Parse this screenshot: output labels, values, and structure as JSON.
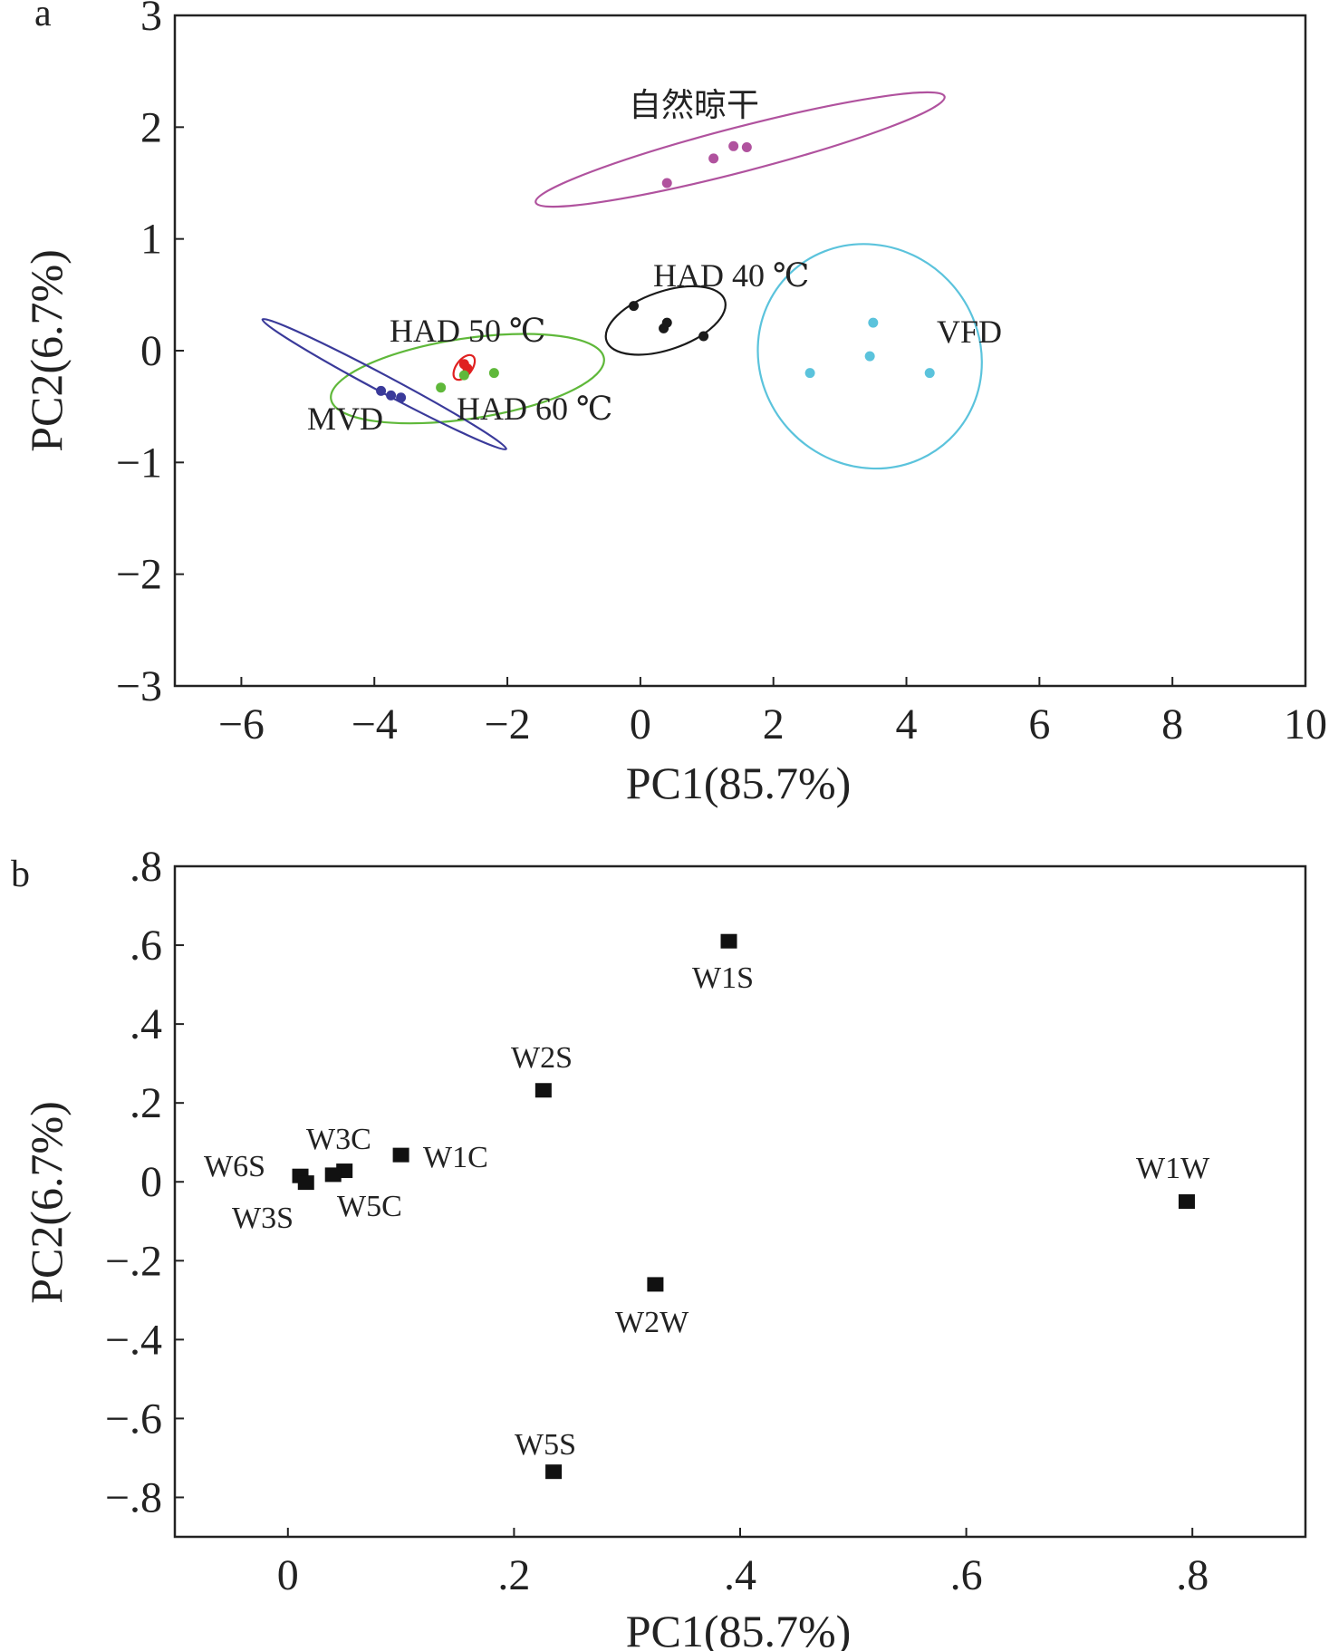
{
  "chart_data": [
    {
      "type": "scatter",
      "panel_label": "a",
      "title": "",
      "xlabel": "PC1(85.7%)",
      "ylabel": "PC2(6.7%)",
      "xlim": [
        -7,
        10
      ],
      "ylim": [
        -3,
        3
      ],
      "xticks": [
        -6,
        -4,
        -2,
        0,
        2,
        4,
        6,
        8,
        10
      ],
      "yticks": [
        -3,
        -2,
        -1,
        0,
        1,
        2,
        3
      ],
      "grid": false,
      "legend": "none",
      "groups": [
        {
          "name": "自然晾干",
          "color": "#b0529e",
          "points": [
            [
              0.4,
              1.5
            ],
            [
              1.1,
              1.72
            ],
            [
              1.4,
              1.83
            ],
            [
              1.6,
              1.82
            ]
          ],
          "ellipse": {
            "cx": 1.5,
            "cy": 1.8,
            "rx": 6.35,
            "ry": 0.2,
            "angle_deg": 14.5
          }
        },
        {
          "name": "HAD 40 ℃",
          "color": "#1a1a1a",
          "points": [
            [
              -0.1,
              0.4
            ],
            [
              0.35,
              0.2
            ],
            [
              0.4,
              0.25
            ],
            [
              0.95,
              0.13
            ]
          ],
          "ellipse": {
            "cx": 0.38,
            "cy": 0.27,
            "rx": 1.88,
            "ry": 0.26,
            "angle_deg": 19
          }
        },
        {
          "name": "VFD",
          "color": "#5bc3dc",
          "points": [
            [
              3.5,
              0.25
            ],
            [
              3.45,
              -0.05
            ],
            [
              2.55,
              -0.2
            ],
            [
              4.35,
              -0.2
            ]
          ],
          "ellipse": {
            "cx": 3.45,
            "cy": -0.05,
            "rx": 3.28,
            "ry": 1.03,
            "angle_deg": 44
          }
        },
        {
          "name": "HAD 50 ℃",
          "color": "#e02020",
          "points": [
            [
              -2.65,
              -0.12
            ],
            [
              -2.6,
              -0.16
            ]
          ],
          "ellipse": {
            "cx": -2.65,
            "cy": -0.15,
            "rx": 0.43,
            "ry": 0.07,
            "angle_deg": 53
          }
        },
        {
          "name": "HAD 60 ℃",
          "color": "#5fb83a",
          "points": [
            [
              -3.0,
              -0.33
            ],
            [
              -2.65,
              -0.22
            ],
            [
              -2.2,
              -0.2
            ]
          ],
          "ellipse": {
            "cx": -2.6,
            "cy": -0.25,
            "rx": 4.15,
            "ry": 0.36,
            "angle_deg": 8.5
          }
        },
        {
          "name": "MVD",
          "color": "#3a3a9a",
          "points": [
            [
              -3.9,
              -0.36
            ],
            [
              -3.75,
              -0.4
            ],
            [
              -3.6,
              -0.42
            ]
          ],
          "ellipse": {
            "cx": -3.85,
            "cy": -0.3,
            "rx": 4.15,
            "ry": 0.075,
            "angle_deg": -28
          }
        }
      ]
    },
    {
      "type": "scatter",
      "panel_label": "b",
      "title": "",
      "xlabel": "PC1(85.7%)",
      "ylabel": "PC2(6.7%)",
      "xlim": [
        -0.1,
        0.9
      ],
      "ylim": [
        -0.9,
        0.8
      ],
      "xticks": [
        0,
        0.2,
        0.4,
        0.6,
        0.8
      ],
      "yticks": [
        -0.8,
        -0.6,
        -0.4,
        -0.2,
        0,
        0.2,
        0.4,
        0.6,
        0.8
      ],
      "grid": false,
      "legend": "none",
      "points": [
        {
          "label": "W1S",
          "x": 0.39,
          "y": 0.61,
          "label_pos": "below"
        },
        {
          "label": "W2S",
          "x": 0.226,
          "y": 0.232,
          "label_pos": "above"
        },
        {
          "label": "W3C",
          "x": 0.05,
          "y": 0.028,
          "label_pos": "above"
        },
        {
          "label": "W1C",
          "x": 0.1,
          "y": 0.068,
          "label_pos": "right"
        },
        {
          "label": "W6S",
          "x": 0.011,
          "y": 0.015,
          "label_pos": "left"
        },
        {
          "label": "W3S",
          "x": 0.016,
          "y": -0.002,
          "label_pos": "below-left"
        },
        {
          "label": "W5C",
          "x": 0.04,
          "y": 0.018,
          "label_pos": "below-right"
        },
        {
          "label": "W1W",
          "x": 0.795,
          "y": -0.05,
          "label_pos": "above"
        },
        {
          "label": "W2W",
          "x": 0.325,
          "y": -0.26,
          "label_pos": "below"
        },
        {
          "label": "W5S",
          "x": 0.235,
          "y": -0.735,
          "label_pos": "above"
        }
      ]
    }
  ]
}
